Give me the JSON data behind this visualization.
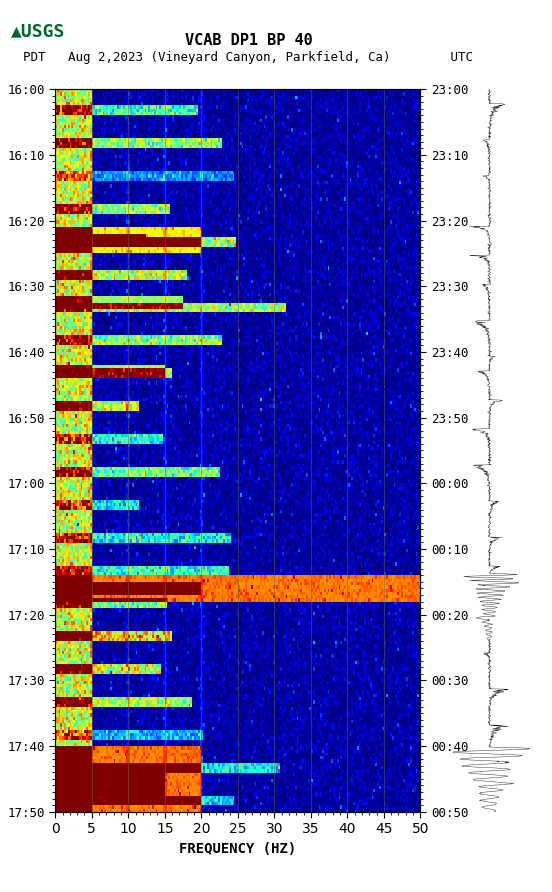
{
  "title_line1": "VCAB DP1 BP 40",
  "title_line2": "PDT   Aug 2,2023 (Vineyard Canyon, Parkfield, Ca)        UTC",
  "xlabel": "FREQUENCY (HZ)",
  "freq_min": 0,
  "freq_max": 50,
  "time_start_pdt": "16:00",
  "time_end_pdt": "17:50",
  "time_start_utc": "23:00",
  "time_end_utc": "00:50",
  "left_yticks_labels": [
    "16:00",
    "16:10",
    "16:20",
    "16:30",
    "16:40",
    "16:50",
    "17:00",
    "17:10",
    "17:20",
    "17:30",
    "17:40",
    "17:50"
  ],
  "right_yticks_labels": [
    "23:00",
    "23:10",
    "23:20",
    "23:30",
    "23:40",
    "23:50",
    "00:00",
    "00:10",
    "00:20",
    "00:30",
    "00:40",
    "00:50"
  ],
  "freq_ticks": [
    0,
    5,
    10,
    15,
    20,
    25,
    30,
    35,
    40,
    45,
    50
  ],
  "vert_line_freqs": [
    5,
    10,
    15,
    20,
    25,
    30,
    35,
    40,
    45
  ],
  "background_color": "#ffffff",
  "spectrogram_cmap": "jet",
  "fig_width": 5.52,
  "fig_height": 8.92,
  "dpi": 100,
  "usgs_logo_color": "#006633",
  "font_family": "monospace"
}
